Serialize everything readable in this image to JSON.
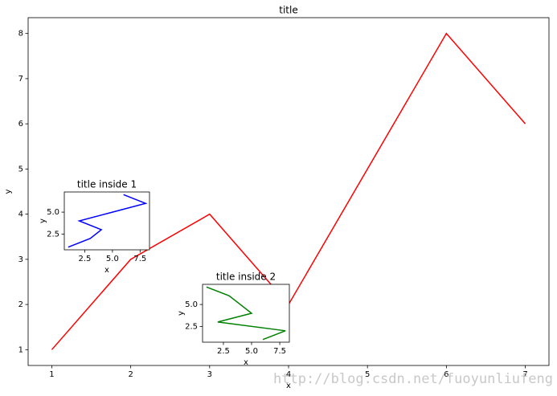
{
  "chart_data": [
    {
      "type": "line",
      "title": "title",
      "xlabel": "x",
      "ylabel": "y",
      "x": [
        1,
        2,
        3,
        4,
        5,
        6,
        7
      ],
      "values": [
        1,
        3,
        4,
        2,
        5,
        8,
        6
      ],
      "color": "#ff0000",
      "xlim": [
        0.7,
        7.3
      ],
      "ylim": [
        0.65,
        8.35
      ],
      "xticks": [
        1,
        2,
        3,
        4,
        5,
        6,
        7
      ],
      "yticks": [
        1,
        2,
        3,
        4,
        5,
        6,
        7,
        8
      ]
    },
    {
      "type": "line",
      "title": "title inside 1",
      "xlabel": "x",
      "ylabel": "y",
      "x": [
        1,
        3,
        4,
        2,
        5,
        8,
        6
      ],
      "values": [
        1,
        2,
        3,
        4,
        5,
        6,
        7
      ],
      "color": "#0000ff",
      "xlim": [
        0.65,
        8.35
      ],
      "ylim": [
        0.7,
        7.3
      ],
      "xticks": [
        2.5,
        {
          "value": 5,
          "label": "5.0"
        },
        7.5
      ],
      "yticks": [
        2.5,
        {
          "value": 5,
          "label": "5.0"
        }
      ]
    },
    {
      "type": "line",
      "title": "title inside 2",
      "xlabel": "x",
      "ylabel": "y",
      "x": [
        6,
        8,
        2,
        5,
        4,
        3,
        1
      ],
      "values": [
        1,
        2,
        3,
        4,
        5,
        6,
        7
      ],
      "color": "#008000",
      "xlim": [
        0.65,
        8.35
      ],
      "ylim": [
        0.7,
        7.3
      ],
      "xticks": [
        2.5,
        {
          "value": 5,
          "label": "5.0"
        },
        7.5
      ],
      "yticks": [
        2.5,
        {
          "value": 5,
          "label": "5.0"
        }
      ]
    }
  ],
  "watermark": "http://blog.csdn.net/fuoyunliufeng"
}
